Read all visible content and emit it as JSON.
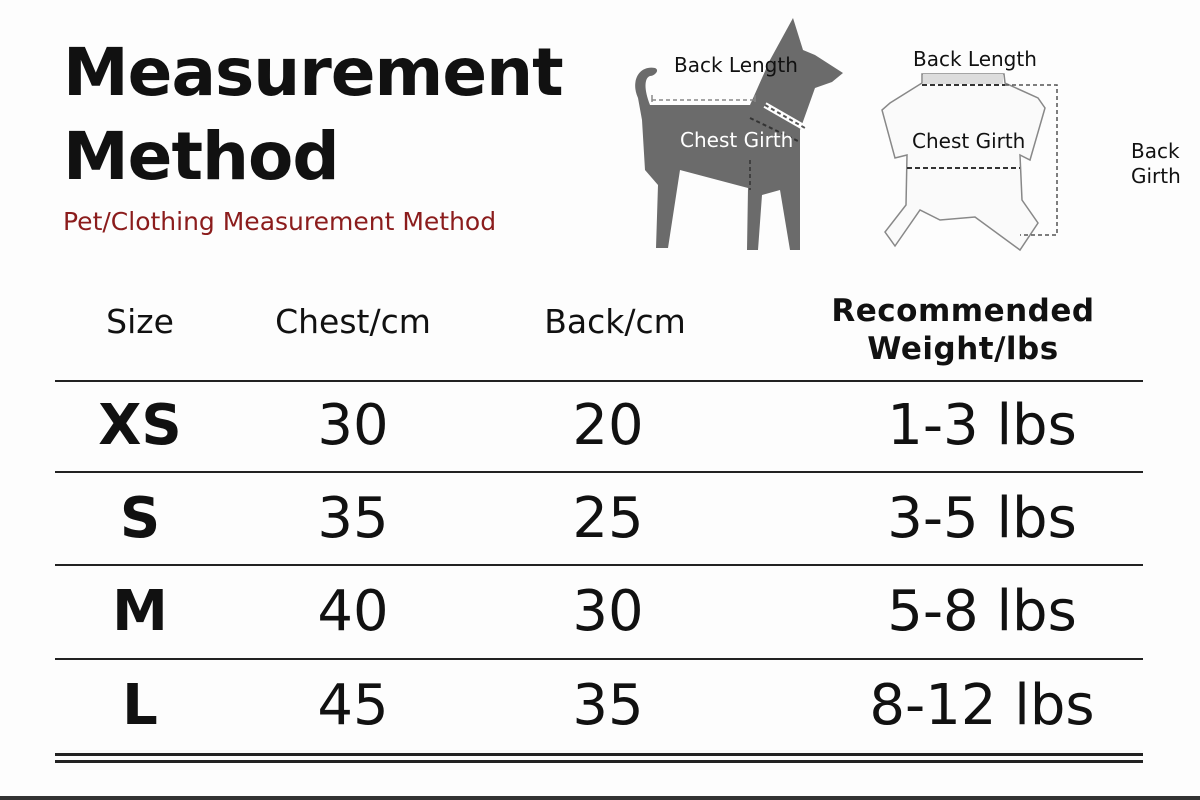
{
  "title_line1": "Measurement",
  "title_line2": "Method",
  "subtitle": "Pet/Clothing Measurement Method",
  "accent_color": "#8b1c1c",
  "dog_diagram": {
    "back_length": "Back Length",
    "chest_girth": "Chest Girth"
  },
  "clothing_diagram": {
    "back_length": "Back Length",
    "chest_girth": "Chest Girth",
    "back_girth_1": "Back",
    "back_girth_2": "Girth"
  },
  "table": {
    "headers": {
      "size": "Size",
      "chest": "Chest/cm",
      "back": "Back/cm",
      "weight_1": "Recommended",
      "weight_2": "Weight/lbs"
    },
    "rows": [
      {
        "size": "XS",
        "chest": "30",
        "back": "20",
        "weight": "1-3 lbs"
      },
      {
        "size": "S",
        "chest": "35",
        "back": "25",
        "weight": "3-5 lbs"
      },
      {
        "size": "M",
        "chest": "40",
        "back": "30",
        "weight": "5-8 lbs"
      },
      {
        "size": "L",
        "chest": "45",
        "back": "35",
        "weight": "8-12 lbs"
      }
    ]
  }
}
